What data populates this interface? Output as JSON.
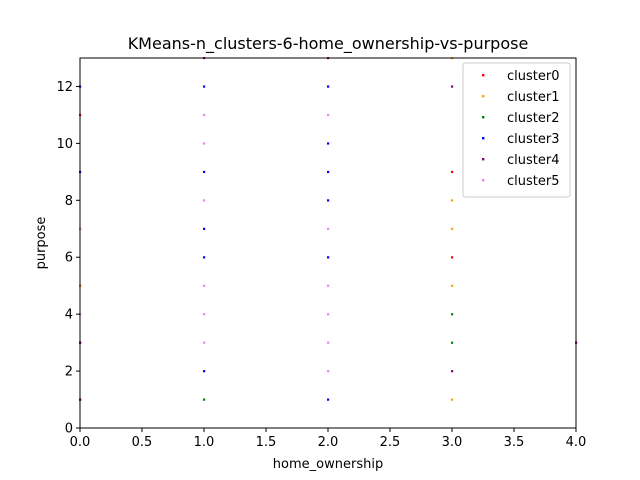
{
  "chart_data": {
    "type": "scatter",
    "title": "KMeans-n_clusters-6-home_ownership-vs-purpose",
    "xlabel": "home_ownership",
    "ylabel": "purpose",
    "xlim": [
      0,
      4
    ],
    "ylim": [
      0,
      13
    ],
    "xticks": [
      "0.0",
      "0.5",
      "1.0",
      "1.5",
      "2.0",
      "2.5",
      "3.0",
      "3.5",
      "4.0"
    ],
    "yticks": [
      "0",
      "2",
      "4",
      "6",
      "8",
      "10",
      "12"
    ],
    "grid": false,
    "legend_position": "top-right",
    "series": [
      {
        "name": "cluster0",
        "color": "#ff0000",
        "points": [
          [
            3,
            9
          ],
          [
            3,
            6
          ],
          [
            0,
            1
          ],
          [
            0,
            5
          ],
          [
            0,
            11
          ]
        ]
      },
      {
        "name": "cluster1",
        "color": "#ffa500",
        "points": [
          [
            3,
            1
          ],
          [
            3,
            5
          ],
          [
            3,
            7
          ],
          [
            3,
            8
          ],
          [
            3,
            13
          ],
          [
            0,
            5
          ],
          [
            0,
            7
          ]
        ]
      },
      {
        "name": "cluster2",
        "color": "#008000",
        "points": [
          [
            1,
            1
          ],
          [
            3,
            3
          ],
          [
            3,
            4
          ],
          [
            0,
            3
          ]
        ]
      },
      {
        "name": "cluster3",
        "color": "#0000ff",
        "points": [
          [
            1,
            2
          ],
          [
            1,
            6
          ],
          [
            1,
            7
          ],
          [
            1,
            9
          ],
          [
            1,
            12
          ],
          [
            2,
            1
          ],
          [
            2,
            6
          ],
          [
            2,
            8
          ],
          [
            2,
            9
          ],
          [
            2,
            10
          ],
          [
            2,
            12
          ],
          [
            0,
            9
          ],
          [
            0,
            12
          ]
        ]
      },
      {
        "name": "cluster4",
        "color": "#800080",
        "points": [
          [
            3,
            2
          ],
          [
            3,
            12
          ],
          [
            0,
            1
          ],
          [
            0,
            3
          ],
          [
            4,
            3
          ],
          [
            1,
            13
          ],
          [
            2,
            13
          ]
        ]
      },
      {
        "name": "cluster5",
        "color": "#ee82ee",
        "points": [
          [
            1,
            3
          ],
          [
            1,
            4
          ],
          [
            1,
            5
          ],
          [
            1,
            8
          ],
          [
            1,
            10
          ],
          [
            1,
            11
          ],
          [
            2,
            2
          ],
          [
            2,
            3
          ],
          [
            2,
            4
          ],
          [
            2,
            5
          ],
          [
            2,
            7
          ],
          [
            2,
            11
          ],
          [
            0,
            7
          ],
          [
            0,
            4
          ]
        ]
      }
    ]
  }
}
